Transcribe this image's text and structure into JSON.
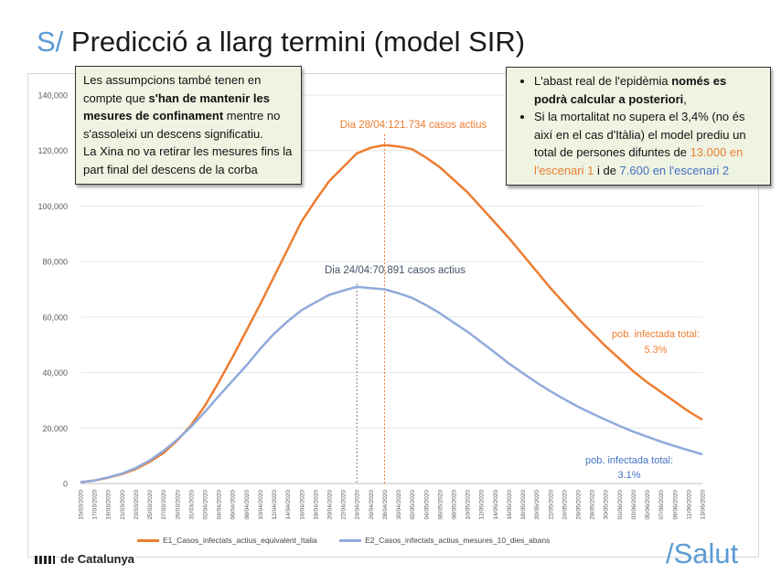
{
  "header": {
    "prefix": "S/",
    "title": "Predicció a llarg termini (model SIR)"
  },
  "note_left": {
    "p1_a": "Les assumpcions també tenen en compte que ",
    "p1_b": "s'han de mantenir les mesures de confinament",
    "p1_c": " mentre no s'assoleixi un descens significatiu.",
    "p2": "La Xina no va retirar les mesures fins la part final del descens de la corba"
  },
  "note_right": {
    "b1_a": "L'abast real de l'epidèmia ",
    "b1_b": "només es podrà calcular a posteriori",
    "b1_c": ",",
    "b2_a": "Si la mortalitat no supera el 3,4% (no és així en el cas d'Itàlia)  el model prediu un total de persones difuntes de ",
    "b2_b": "13.000 en l'escenari 1",
    "b2_c": " i de ",
    "b2_d": "7.600 en l'escenari 2"
  },
  "footer": {
    "left": "de Catalunya",
    "right": "/Salut"
  },
  "colors": {
    "series1": "#ed7d31",
    "series2": "#8faadc",
    "series2_text": "#4472c4",
    "accent": "#5b9bd5"
  },
  "chart_data": {
    "type": "line",
    "x": [
      "15/03/2020",
      "17/03/2020",
      "19/03/2020",
      "21/03/2020",
      "23/03/2020",
      "25/03/2020",
      "27/03/2020",
      "29/03/2020",
      "31/03/2020",
      "02/04/2020",
      "04/04/2020",
      "06/04/2020",
      "08/04/2020",
      "10/04/2020",
      "12/04/2020",
      "14/04/2020",
      "16/04/2020",
      "18/04/2020",
      "20/04/2020",
      "22/04/2020",
      "24/04/2020",
      "26/04/2020",
      "28/04/2020",
      "30/04/2020",
      "02/05/2020",
      "04/05/2020",
      "06/05/2020",
      "08/05/2020",
      "10/05/2020",
      "12/05/2020",
      "14/05/2020",
      "16/05/2020",
      "18/05/2020",
      "20/05/2020",
      "22/05/2020",
      "24/05/2020",
      "26/05/2020",
      "28/05/2020",
      "30/05/2020",
      "01/06/2020",
      "03/06/2020",
      "05/06/2020",
      "07/06/2020",
      "09/06/2020",
      "11/06/2020",
      "13/06/2020"
    ],
    "series": [
      {
        "name": "E1_Casos_infectats_actius_equivalent_Italia",
        "values": [
          500,
          1100,
          2100,
          3400,
          5200,
          7800,
          11000,
          15500,
          21000,
          28000,
          36500,
          45500,
          55000,
          64500,
          74500,
          84500,
          94500,
          102000,
          109000,
          114000,
          119000,
          121000,
          122000,
          121500,
          120500,
          117500,
          114000,
          109500,
          105000,
          99500,
          94000,
          88500,
          82500,
          76500,
          70500,
          65000,
          59500,
          54500,
          49500,
          45000,
          40500,
          36500,
          33000,
          29500,
          26000,
          23000
        ]
      },
      {
        "name": "E2_Casos_infectats_actius_mesures_10_dies_abans",
        "values": [
          500,
          1100,
          2200,
          3600,
          5600,
          8300,
          11800,
          15800,
          20500,
          25800,
          31500,
          37000,
          42500,
          48500,
          54000,
          58500,
          62500,
          65300,
          68000,
          69500,
          70891,
          70400,
          70000,
          68600,
          66900,
          64300,
          61400,
          58000,
          54700,
          51000,
          47200,
          43300,
          39800,
          36400,
          33300,
          30400,
          27700,
          25300,
          23000,
          20800,
          18700,
          16900,
          15100,
          13500,
          12000,
          10500
        ]
      }
    ],
    "ylim": [
      0,
      140000
    ],
    "yticks": [
      "0",
      "20,000",
      "40,000",
      "60,000",
      "80,000",
      "100,000",
      "120,000",
      "140,000"
    ],
    "annotations": {
      "peak1": "Dia 28/04:121.734 casos actius",
      "peak2": "Dia 24/04:70.891 casos actius",
      "total1_a": "pob. infectada total:",
      "total1_b": "5.3%",
      "total2_a": "pob. infectada total:",
      "total2_b": "3.1%"
    },
    "grid": true,
    "legend_position": "bottom"
  }
}
